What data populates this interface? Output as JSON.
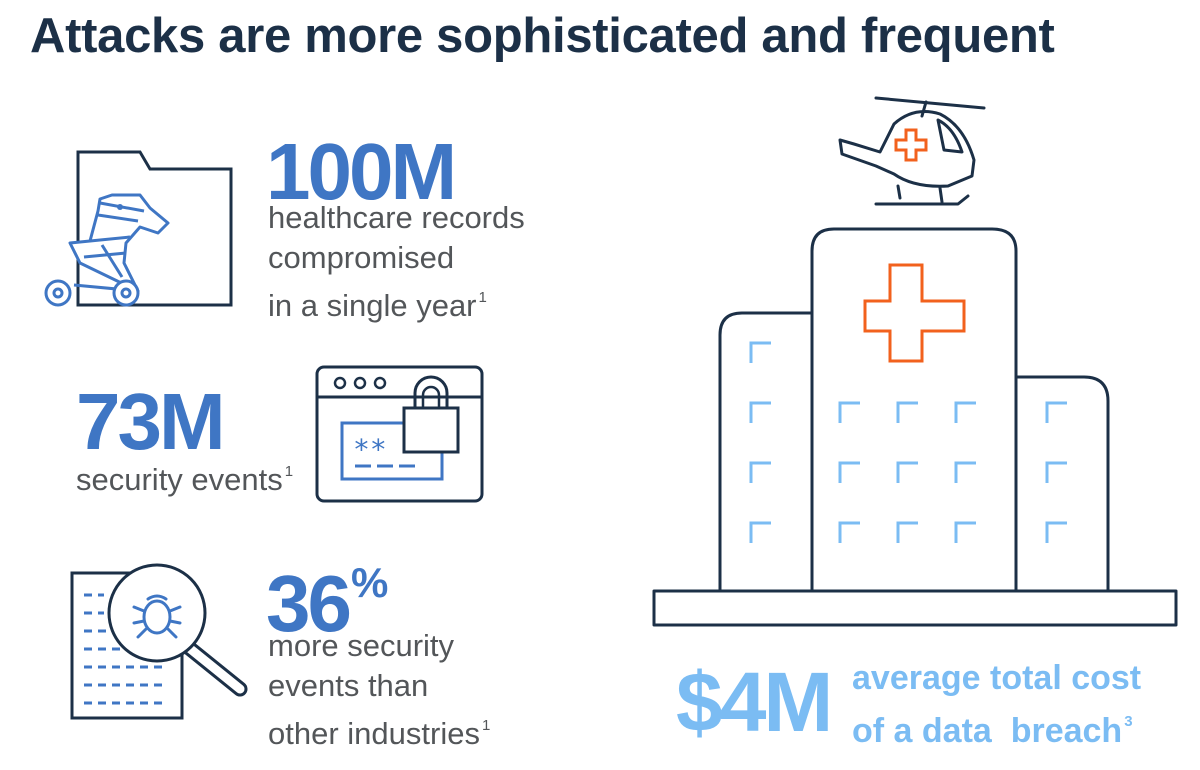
{
  "title": "Attacks are more sophisticated and frequent",
  "stats": [
    {
      "value": "100M",
      "lines": [
        "healthcare records",
        "compromised",
        "in a single year"
      ],
      "footnote": "1",
      "icon": "folder-trojan-horse-icon"
    },
    {
      "value": "73M",
      "lines": [
        "security events"
      ],
      "footnote": "1",
      "icon": "browser-password-lock-icon"
    },
    {
      "value": "36",
      "unit": "%",
      "lines": [
        "more security",
        "events than",
        "other industries"
      ],
      "footnote": "1",
      "icon": "document-bug-magnifier-icon"
    }
  ],
  "cost": {
    "value": "$4M",
    "lines": [
      "average total cost",
      "of a data  breach"
    ],
    "footnote": "3"
  },
  "illustration": {
    "icons": [
      "medical-helicopter-icon",
      "hospital-building-icon"
    ]
  },
  "colors": {
    "title": "#1c3047",
    "stat_blue": "#3f76c4",
    "cost_blue": "#7bbcf3",
    "icon_dark": "#1c3047",
    "icon_blue": "#3f76c4",
    "accent_orange": "#f2611d",
    "window_blue": "#7bbcf3"
  }
}
